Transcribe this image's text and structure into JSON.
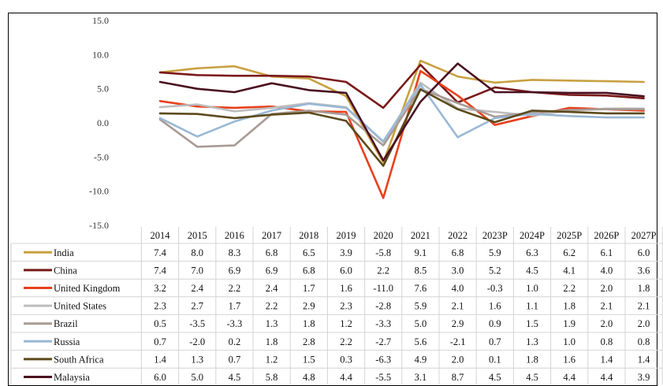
{
  "chart_data": {
    "type": "line",
    "title": "",
    "xlabel": "",
    "ylabel": "",
    "ylim": [
      -15.0,
      15.0
    ],
    "yticks": [
      "15.0",
      "10.0",
      "5.0",
      "0.0",
      "-5.0",
      "-10.0",
      "-15.0"
    ],
    "grid": false,
    "legend": "data table below the plot",
    "categories": [
      "2014",
      "2015",
      "2016",
      "2017",
      "2018",
      "2019",
      "2020",
      "2021",
      "2022",
      "2023P",
      "2024P",
      "2025P",
      "2026P",
      "2027P"
    ],
    "series": [
      {
        "name": "India",
        "color": "#c8a040",
        "values": [
          7.4,
          8.0,
          8.3,
          6.8,
          6.5,
          3.9,
          -5.8,
          9.1,
          6.8,
          5.9,
          6.3,
          6.2,
          6.1,
          6.0
        ],
        "labels": [
          "7.4",
          "8.0",
          "8.3",
          "6.8",
          "6.5",
          "3.9",
          "-5.8",
          "9.1",
          "6.8",
          "5.9",
          "6.3",
          "6.2",
          "6.1",
          "6.0"
        ]
      },
      {
        "name": "China",
        "color": "#7a1a1a",
        "values": [
          7.4,
          7.0,
          6.9,
          6.9,
          6.8,
          6.0,
          2.2,
          8.5,
          3.0,
          5.2,
          4.5,
          4.1,
          4.0,
          3.6
        ],
        "labels": [
          "7.4",
          "7.0",
          "6.9",
          "6.9",
          "6.8",
          "6.0",
          "2.2",
          "8.5",
          "3.0",
          "5.2",
          "4.5",
          "4.1",
          "4.0",
          "3.6"
        ]
      },
      {
        "name": "United Kingdom",
        "color": "#e8401c",
        "values": [
          3.2,
          2.4,
          2.2,
          2.4,
          1.7,
          1.6,
          -11.0,
          7.6,
          4.0,
          -0.3,
          1.0,
          2.2,
          2.0,
          1.8
        ],
        "labels": [
          "3.2",
          "2.4",
          "2.2",
          "2.4",
          "1.7",
          "1.6",
          "-11.0",
          "7.6",
          "4.0",
          "-0.3",
          "1.0",
          "2.2",
          "2.0",
          "1.8"
        ]
      },
      {
        "name": "United States",
        "color": "#bdbdbd",
        "values": [
          2.3,
          2.7,
          1.7,
          2.2,
          2.9,
          2.3,
          -2.8,
          5.9,
          2.1,
          1.6,
          1.1,
          1.8,
          2.1,
          2.1
        ],
        "labels": [
          "2.3",
          "2.7",
          "1.7",
          "2.2",
          "2.9",
          "2.3",
          "-2.8",
          "5.9",
          "2.1",
          "1.6",
          "1.1",
          "1.8",
          "2.1",
          "2.1"
        ]
      },
      {
        "name": "Brazil",
        "color": "#a89a94",
        "values": [
          0.5,
          -3.5,
          -3.3,
          1.3,
          1.8,
          1.2,
          -3.3,
          5.0,
          2.9,
          0.9,
          1.5,
          1.9,
          2.0,
          2.0
        ],
        "labels": [
          "0.5",
          "-3.5",
          "-3.3",
          "1.3",
          "1.8",
          "1.2",
          "-3.3",
          "5.0",
          "2.9",
          "0.9",
          "1.5",
          "1.9",
          "2.0",
          "2.0"
        ]
      },
      {
        "name": "Russia",
        "color": "#9ab8d4",
        "values": [
          0.7,
          -2.0,
          0.2,
          1.8,
          2.8,
          2.2,
          -2.7,
          5.6,
          -2.1,
          0.7,
          1.3,
          1.0,
          0.8,
          0.8
        ],
        "labels": [
          "0.7",
          "-2.0",
          "0.2",
          "1.8",
          "2.8",
          "2.2",
          "-2.7",
          "5.6",
          "-2.1",
          "0.7",
          "1.3",
          "1.0",
          "0.8",
          "0.8"
        ]
      },
      {
        "name": "South Africa",
        "color": "#5c4a1c",
        "values": [
          1.4,
          1.3,
          0.7,
          1.2,
          1.5,
          0.3,
          -6.3,
          4.9,
          2.0,
          0.1,
          1.8,
          1.6,
          1.4,
          1.4
        ],
        "labels": [
          "1.4",
          "1.3",
          "0.7",
          "1.2",
          "1.5",
          "0.3",
          "-6.3",
          "4.9",
          "2.0",
          "0.1",
          "1.8",
          "1.6",
          "1.4",
          "1.4"
        ]
      },
      {
        "name": "Malaysia",
        "color": "#4a1020",
        "values": [
          6.0,
          5.0,
          4.5,
          5.8,
          4.8,
          4.4,
          -5.5,
          3.1,
          8.7,
          4.5,
          4.5,
          4.4,
          4.4,
          3.9
        ],
        "labels": [
          "6.0",
          "5.0",
          "4.5",
          "5.8",
          "4.8",
          "4.4",
          "-5.5",
          "3.1",
          "8.7",
          "4.5",
          "4.5",
          "4.4",
          "4.4",
          "3.9"
        ]
      }
    ]
  }
}
